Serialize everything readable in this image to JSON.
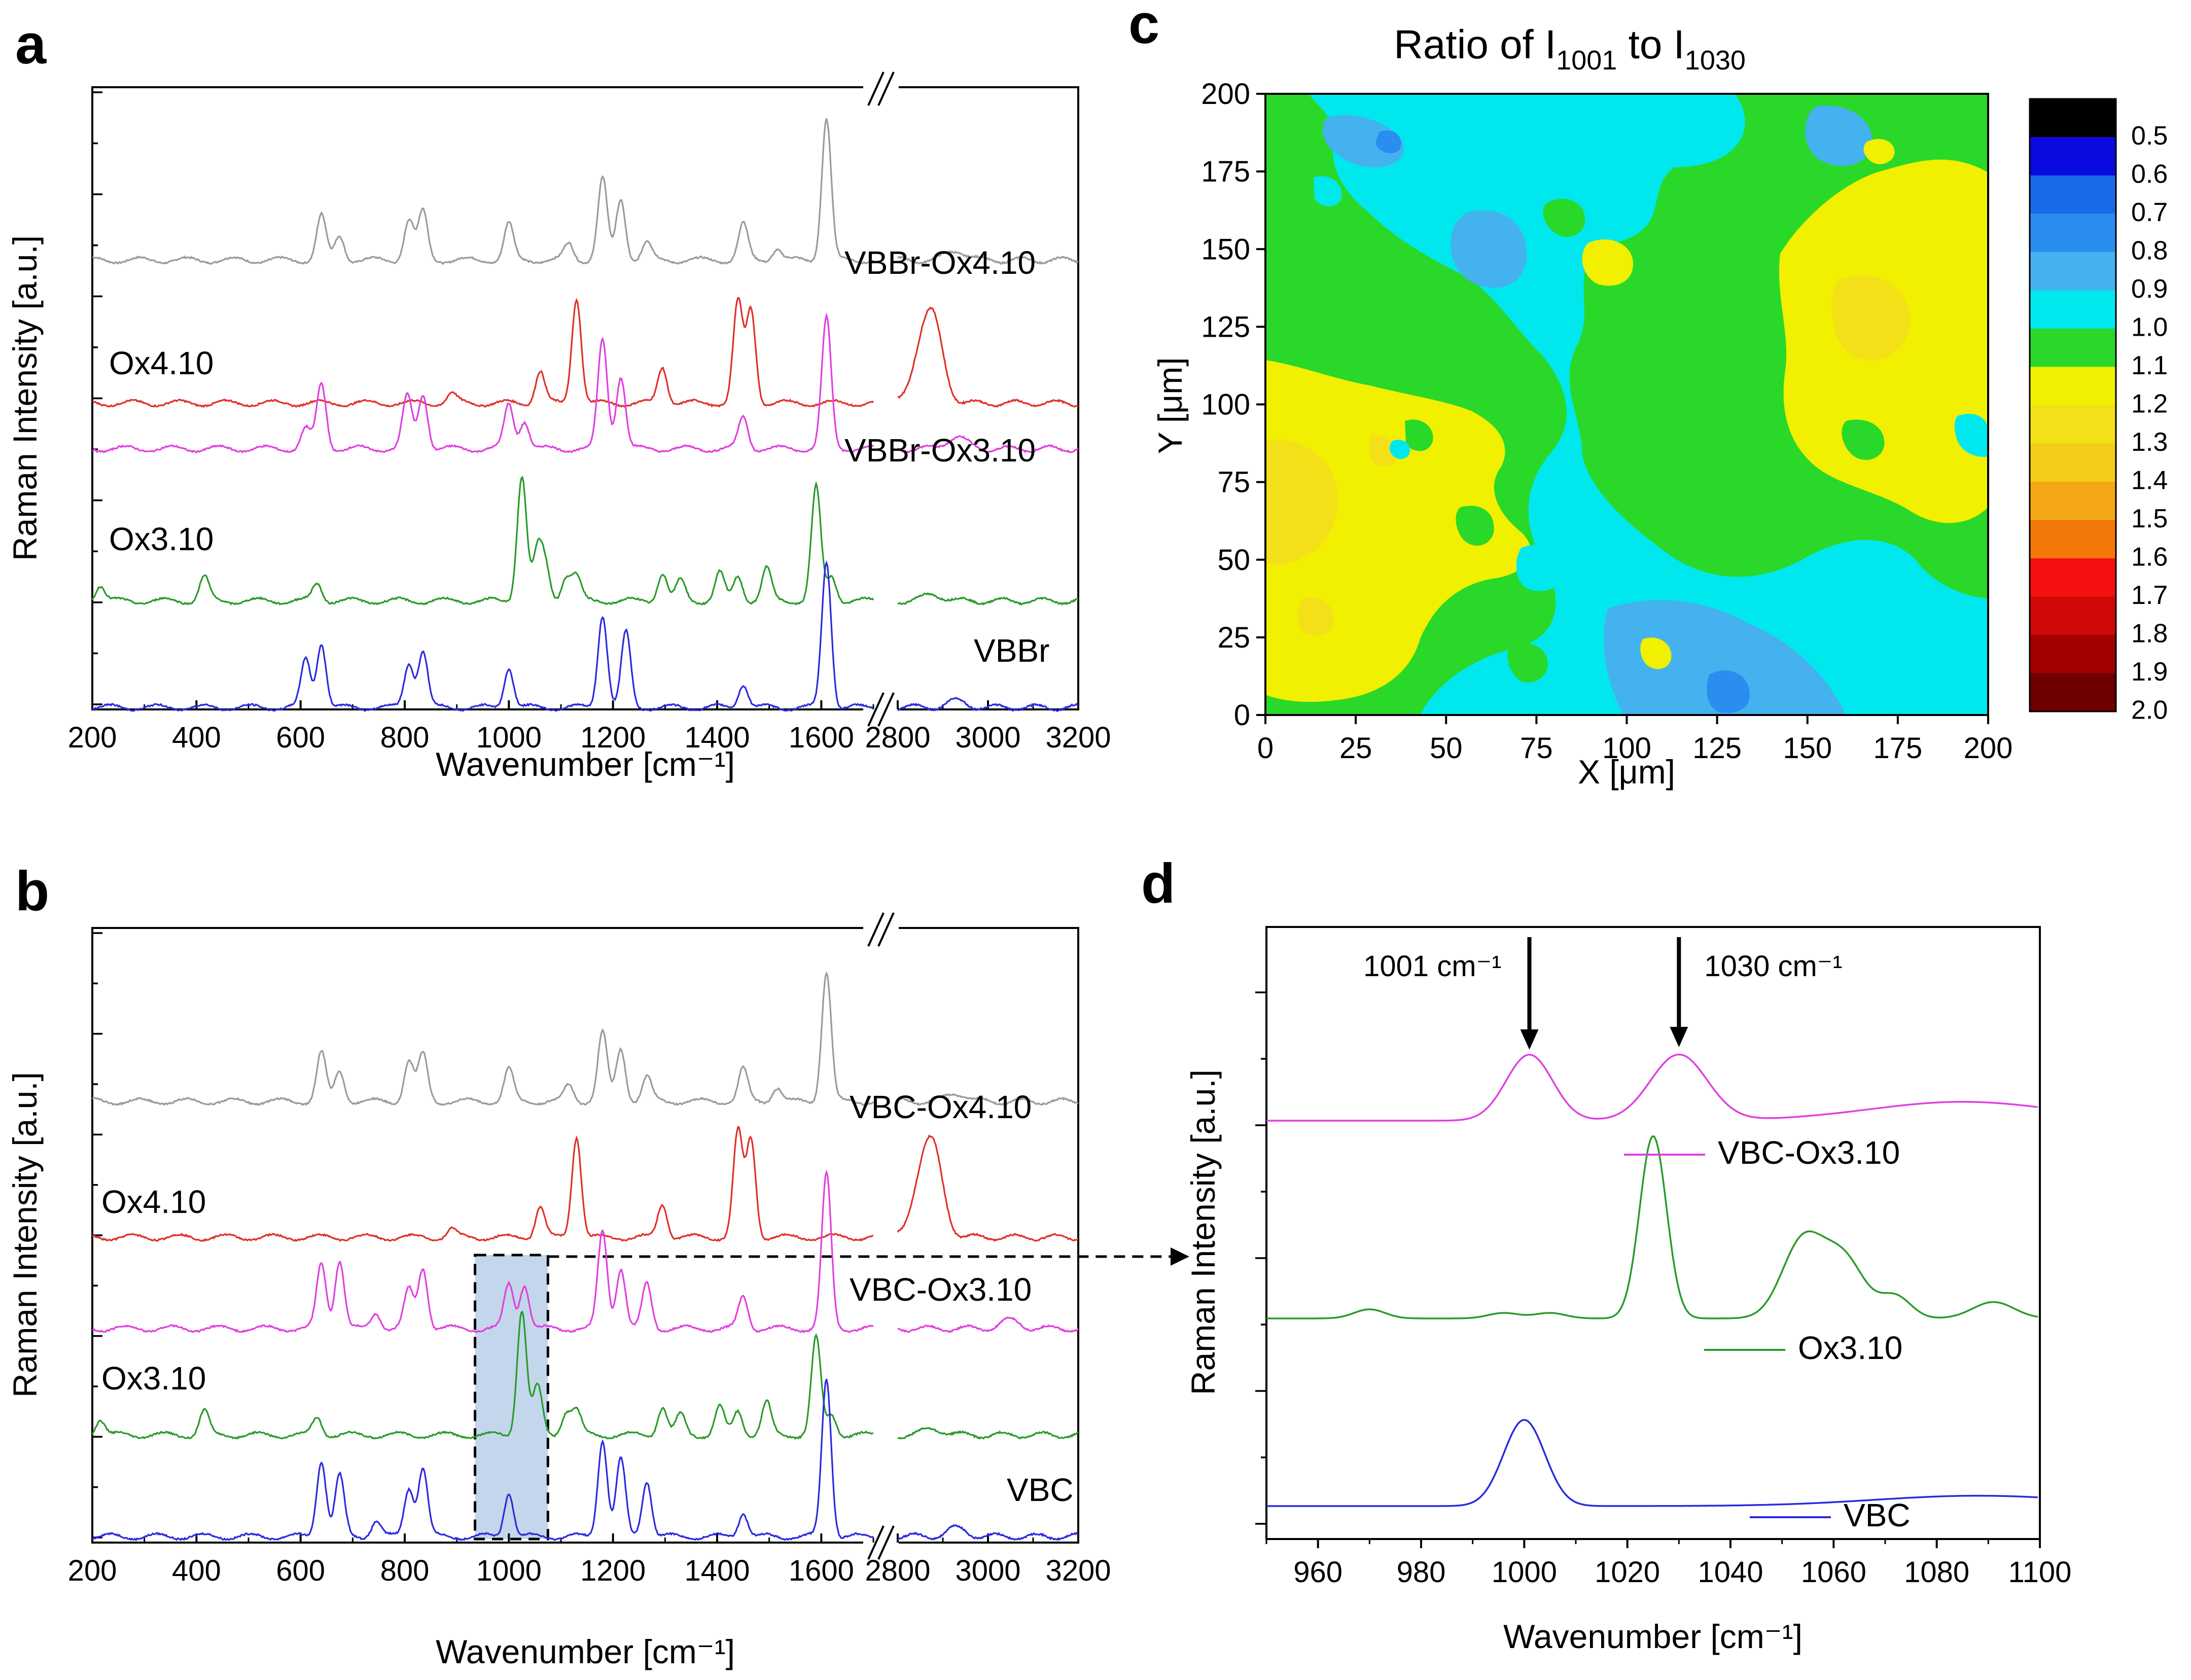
{
  "panels": {
    "a": "a",
    "b": "b",
    "c": "c",
    "d": "d"
  },
  "chart_data": [
    {
      "panel": "a",
      "type": "line",
      "xlabel": "Wavenumber [cm⁻¹]",
      "ylabel": "Raman Intensity [a.u.]",
      "xlim": [
        200,
        3200
      ],
      "axis_break": [
        1700,
        2800
      ],
      "xticks": [
        "200",
        "400",
        "600",
        "800",
        "1000",
        "1200",
        "1400",
        "1600",
        "2800",
        "3000",
        "3200"
      ],
      "series": [
        {
          "name": "VBBr-Ox4.10",
          "color": "#9a9a9a",
          "peaks": [
            [
              640,
              0.55
            ],
            [
              675,
              0.3
            ],
            [
              808,
              0.5
            ],
            [
              835,
              0.6
            ],
            [
              1000,
              0.45
            ],
            [
              1115,
              0.2
            ],
            [
              1180,
              1.0
            ],
            [
              1215,
              0.75
            ],
            [
              1265,
              0.22
            ],
            [
              1450,
              0.45
            ],
            [
              1515,
              0.15
            ],
            [
              1610,
              1.75
            ],
            [
              2930,
              0.12
            ]
          ]
        },
        {
          "name": "Ox4.10",
          "color": "#e0302a",
          "peaks": [
            [
              890,
              0.12
            ],
            [
              1060,
              0.4
            ],
            [
              1130,
              1.3
            ],
            [
              1295,
              0.45
            ],
            [
              1440,
              1.25
            ],
            [
              1465,
              1.15
            ],
            [
              2850,
              0.5
            ],
            [
              2880,
              0.9
            ]
          ]
        },
        {
          "name": "VBBr-Ox3.10",
          "color": "#e040e0",
          "peaks": [
            [
              610,
              0.25
            ],
            [
              640,
              0.8
            ],
            [
              805,
              0.65
            ],
            [
              835,
              0.68
            ],
            [
              1000,
              0.55
            ],
            [
              1030,
              0.35
            ],
            [
              1180,
              1.35
            ],
            [
              1215,
              0.9
            ],
            [
              1450,
              0.4
            ],
            [
              1610,
              1.6
            ],
            [
              2930,
              0.15
            ]
          ]
        },
        {
          "name": "Ox3.10",
          "color": "#2a9a2a",
          "peaks": [
            [
              215,
              0.2
            ],
            [
              415,
              0.3
            ],
            [
              632,
              0.22
            ],
            [
              1025,
              1.55
            ],
            [
              1055,
              0.6
            ],
            [
              1070,
              0.4
            ],
            [
              1110,
              0.3
            ],
            [
              1130,
              0.3
            ],
            [
              1295,
              0.35
            ],
            [
              1330,
              0.25
            ],
            [
              1405,
              0.35
            ],
            [
              1440,
              0.3
            ],
            [
              1495,
              0.4
            ],
            [
              1590,
              1.4
            ],
            [
              1620,
              0.3
            ],
            [
              2880,
              0.08
            ]
          ]
        },
        {
          "name": "VBBr",
          "color": "#2a2ae0",
          "peaks": [
            [
              610,
              0.6
            ],
            [
              640,
              0.8
            ],
            [
              808,
              0.55
            ],
            [
              835,
              0.7
            ],
            [
              1000,
              0.5
            ],
            [
              1180,
              1.15
            ],
            [
              1225,
              0.92
            ],
            [
              1450,
              0.3
            ],
            [
              1610,
              1.8
            ],
            [
              2930,
              0.08
            ]
          ]
        }
      ]
    },
    {
      "panel": "b",
      "type": "line",
      "xlabel": "Wavenumber [cm⁻¹]",
      "ylabel": "Raman Intensity [a.u.]",
      "xlim": [
        200,
        3200
      ],
      "axis_break": [
        1700,
        2800
      ],
      "xticks": [
        "200",
        "400",
        "600",
        "800",
        "1000",
        "1200",
        "1400",
        "1600",
        "2800",
        "3000",
        "3200"
      ],
      "highlight_region": [
        935,
        1075
      ],
      "series": [
        {
          "name": "VBC-Ox4.10",
          "color": "#9a9a9a",
          "peaks": [
            [
              640,
              0.6
            ],
            [
              675,
              0.38
            ],
            [
              808,
              0.5
            ],
            [
              835,
              0.58
            ],
            [
              1000,
              0.4
            ],
            [
              1115,
              0.2
            ],
            [
              1180,
              0.85
            ],
            [
              1215,
              0.65
            ],
            [
              1265,
              0.3
            ],
            [
              1450,
              0.4
            ],
            [
              1515,
              0.18
            ],
            [
              1610,
              1.6
            ],
            [
              2930,
              0.1
            ]
          ]
        },
        {
          "name": "Ox4.10",
          "color": "#e0302a",
          "peaks": [
            [
              890,
              0.1
            ],
            [
              1060,
              0.38
            ],
            [
              1130,
              1.25
            ],
            [
              1295,
              0.42
            ],
            [
              1440,
              1.3
            ],
            [
              1465,
              1.2
            ],
            [
              2850,
              0.55
            ],
            [
              2880,
              0.95
            ]
          ]
        },
        {
          "name": "VBC-Ox3.10",
          "color": "#e040e0",
          "peaks": [
            [
              640,
              0.8
            ],
            [
              675,
              0.85
            ],
            [
              745,
              0.2
            ],
            [
              808,
              0.48
            ],
            [
              835,
              0.75
            ],
            [
              1000,
              0.55
            ],
            [
              1030,
              0.55
            ],
            [
              1180,
              1.2
            ],
            [
              1215,
              0.75
            ],
            [
              1265,
              0.55
            ],
            [
              1450,
              0.4
            ],
            [
              1610,
              1.9
            ],
            [
              3050,
              0.1
            ]
          ]
        },
        {
          "name": "Ox3.10",
          "color": "#2a9a2a",
          "peaks": [
            [
              215,
              0.2
            ],
            [
              415,
              0.3
            ],
            [
              632,
              0.22
            ],
            [
              1025,
              1.55
            ],
            [
              1055,
              0.6
            ],
            [
              1110,
              0.28
            ],
            [
              1130,
              0.3
            ],
            [
              1295,
              0.35
            ],
            [
              1330,
              0.25
            ],
            [
              1405,
              0.35
            ],
            [
              1440,
              0.3
            ],
            [
              1495,
              0.4
            ],
            [
              1590,
              1.2
            ],
            [
              1620,
              0.25
            ],
            [
              2880,
              0.08
            ]
          ]
        },
        {
          "name": "VBC",
          "color": "#2a2ae0",
          "peaks": [
            [
              640,
              0.95
            ],
            [
              675,
              0.75
            ],
            [
              745,
              0.2
            ],
            [
              808,
              0.6
            ],
            [
              835,
              0.85
            ],
            [
              1000,
              0.55
            ],
            [
              1180,
              1.2
            ],
            [
              1215,
              0.95
            ],
            [
              1265,
              0.7
            ],
            [
              1450,
              0.3
            ],
            [
              1610,
              1.95
            ],
            [
              2930,
              0.1
            ]
          ]
        }
      ]
    },
    {
      "panel": "c",
      "type": "heatmap",
      "title_prefix": "Ratio of I",
      "title_sub1": "1001",
      "title_mid": " to I",
      "title_sub2": "1030",
      "xlabel": "X [μm]",
      "ylabel": "Y [μm]",
      "xlim": [
        0,
        200
      ],
      "ylim": [
        0,
        200
      ],
      "xticks": [
        "0",
        "25",
        "50",
        "75",
        "100",
        "125",
        "150",
        "175",
        "200"
      ],
      "yticks": [
        "0",
        "25",
        "50",
        "75",
        "100",
        "125",
        "150",
        "175",
        "200"
      ],
      "colorbar": {
        "levels": [
          "0.5",
          "0.6",
          "0.7",
          "0.8",
          "0.9",
          "1.0",
          "1.1",
          "1.2",
          "1.3",
          "1.4",
          "1.5",
          "1.6",
          "1.7",
          "1.8",
          "1.9",
          "2.0"
        ],
        "colors": [
          "#000000",
          "#0a0ae0",
          "#1a6ae8",
          "#2a8ef0",
          "#44b2ee",
          "#00e8ee",
          "#2ad82a",
          "#f0f000",
          "#f4e018",
          "#f4cc1a",
          "#f4a818",
          "#f47808",
          "#f41010",
          "#d00808",
          "#a00000",
          "#6e0000"
        ]
      },
      "regions": [
        {
          "label": "1.0-1.1",
          "color": "#2ad82a"
        },
        {
          "label": "0.9-1.0",
          "color": "#00e8ee"
        },
        {
          "label": "0.8-0.9",
          "color": "#44b2ee"
        },
        {
          "label": "0.7-0.8",
          "color": "#2a8ef0"
        },
        {
          "label": "1.1-1.2",
          "color": "#f0f000"
        },
        {
          "label": "1.2-1.3",
          "color": "#f4e018"
        },
        {
          "label": "1.3-1.4",
          "color": "#f4cc1a"
        }
      ]
    },
    {
      "panel": "d",
      "type": "line",
      "xlabel": "Wavenumber [cm⁻¹]",
      "ylabel": "Raman Intensity [a.u.]",
      "xlim": [
        950,
        1100
      ],
      "xticks": [
        "960",
        "980",
        "1000",
        "1020",
        "1040",
        "1060",
        "1080",
        "1100"
      ],
      "annotations": [
        {
          "text": "1001 cm⁻¹",
          "x": 1001,
          "color": "#2aa84a"
        },
        {
          "text": "1030 cm⁻¹",
          "x": 1030,
          "color": "#1a7ad0"
        }
      ],
      "series": [
        {
          "name": "VBC-Ox3.10",
          "color": "#e040e0",
          "peaks": [
            [
              1001,
              0.42,
              4.5
            ],
            [
              1030,
              0.42,
              5.5
            ],
            [
              1085,
              0.12,
              18
            ]
          ]
        },
        {
          "name": "Ox3.10",
          "color": "#2a9a2a",
          "peaks": [
            [
              970,
              0.05,
              3
            ],
            [
              996,
              0.03,
              3
            ],
            [
              1005,
              0.03,
              3
            ],
            [
              1025,
              1.0,
              2.6
            ],
            [
              1054,
              0.42,
              4
            ],
            [
              1062,
              0.32,
              4
            ],
            [
              1072,
              0.12,
              3
            ],
            [
              1091,
              0.09,
              4
            ]
          ]
        },
        {
          "name": "VBC",
          "color": "#2a2ae0",
          "peaks": [
            [
              1000,
              0.5,
              4
            ],
            [
              1088,
              0.06,
              20
            ]
          ]
        }
      ]
    }
  ]
}
